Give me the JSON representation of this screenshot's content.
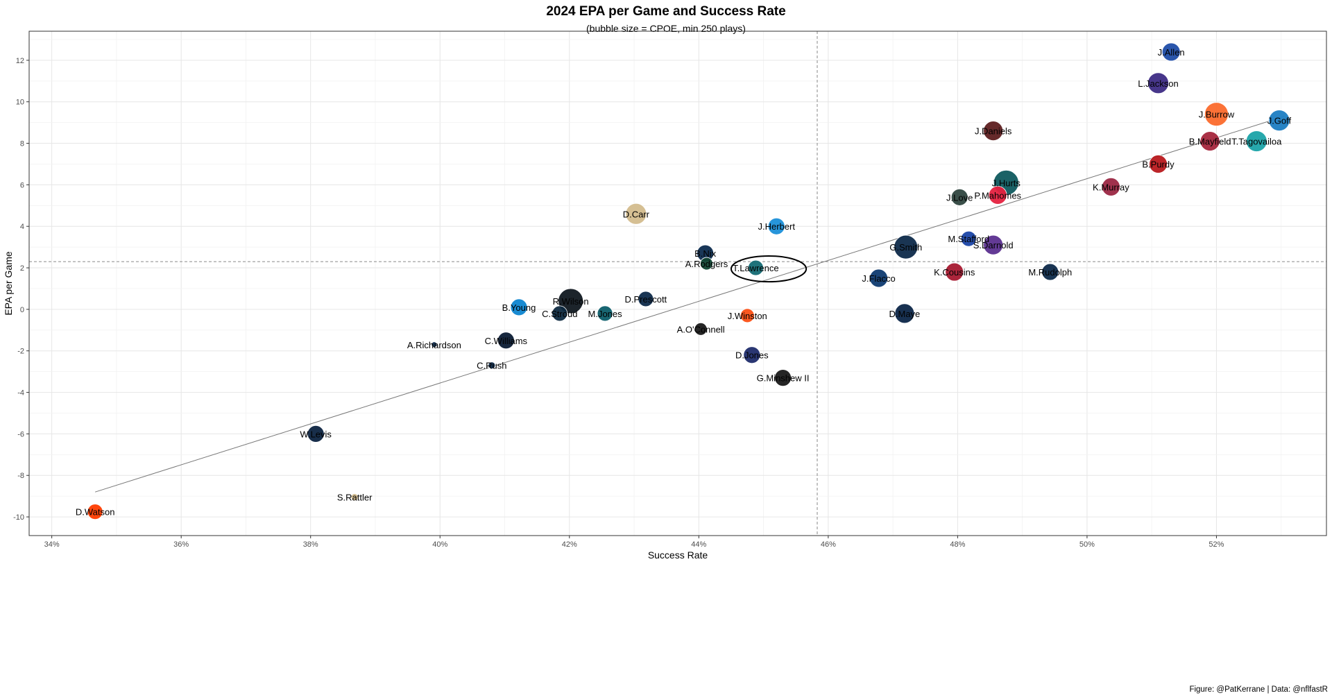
{
  "chart_data": {
    "type": "scatter",
    "title": "2024 EPA per Game and Success Rate",
    "subtitle": "(bubble size = CPOE, min 250 plays)",
    "xlabel": "Success Rate",
    "ylabel": "EPA per Game",
    "caption": "Figure: @PatKerrane | Data: @nflfastR",
    "xlim": [
      0.3365,
      0.537
    ],
    "ylim": [
      -10.9,
      13.4
    ],
    "x_ticks": [
      0.34,
      0.36,
      0.38,
      0.4,
      0.42,
      0.44,
      0.46,
      0.48,
      0.5,
      0.52
    ],
    "x_tick_labels": [
      "34%",
      "36%",
      "38%",
      "40%",
      "42%",
      "44%",
      "46%",
      "48%",
      "50%",
      "52%"
    ],
    "y_ticks": [
      -10,
      -8,
      -6,
      -4,
      -2,
      0,
      2,
      4,
      6,
      8,
      10,
      12
    ],
    "y_tick_labels": [
      "-10",
      "-8",
      "-6",
      "-4",
      "-2",
      "0",
      "2",
      "4",
      "6",
      "8",
      "10",
      "12"
    ],
    "mean_x": 0.4583,
    "mean_y": 2.3,
    "trend_line": {
      "x": [
        0.3467,
        0.5305
      ],
      "y": [
        -8.8,
        9.3
      ]
    },
    "highlight_ellipse": {
      "cx": 0.4508,
      "cy": 1.95,
      "rx": 0.0058,
      "ry": 0.62
    },
    "grid": true,
    "points": [
      {
        "name": "J.Allen",
        "x": 0.513,
        "y": 12.4,
        "size": 13,
        "color": "#1F4DA8"
      },
      {
        "name": "L.Jackson",
        "x": 0.511,
        "y": 10.9,
        "size": 15,
        "color": "#3D2B84"
      },
      {
        "name": "J.Burrow",
        "x": 0.52,
        "y": 9.4,
        "size": 17,
        "color": "#FB6A2C"
      },
      {
        "name": "J.Goff",
        "x": 0.5297,
        "y": 9.1,
        "size": 15,
        "color": "#1C7DC2"
      },
      {
        "name": "J.Daniels",
        "x": 0.4855,
        "y": 8.6,
        "size": 14,
        "color": "#5E1F20"
      },
      {
        "name": "B.Mayfield",
        "x": 0.519,
        "y": 8.1,
        "size": 14,
        "color": "#A5263C"
      },
      {
        "name": "T.Tagovailoa",
        "x": 0.5262,
        "y": 8.1,
        "size": 15,
        "color": "#1BA3A8"
      },
      {
        "name": "B.Purdy",
        "x": 0.511,
        "y": 7.0,
        "size": 13,
        "color": "#B8191E"
      },
      {
        "name": "J.Hurts",
        "x": 0.4875,
        "y": 6.1,
        "size": 18,
        "color": "#0F5A5E"
      },
      {
        "name": "K.Murray",
        "x": 0.5037,
        "y": 5.9,
        "size": 13,
        "color": "#9B2743"
      },
      {
        "name": "P.Mahomes",
        "x": 0.4862,
        "y": 5.5,
        "size": 13,
        "color": "#E5213F"
      },
      {
        "name": "J.Love",
        "x": 0.4803,
        "y": 5.4,
        "size": 12,
        "color": "#2F463F"
      },
      {
        "name": "D.Carr",
        "x": 0.4303,
        "y": 4.6,
        "size": 15,
        "color": "#D3BC8D"
      },
      {
        "name": "J.Herbert",
        "x": 0.452,
        "y": 4.0,
        "size": 12,
        "color": "#1B8FD8"
      },
      {
        "name": "M.Stafford",
        "x": 0.4817,
        "y": 3.4,
        "size": 11,
        "color": "#1A44A6"
      },
      {
        "name": "S.Darnold",
        "x": 0.4855,
        "y": 3.1,
        "size": 14,
        "color": "#5B2F8F"
      },
      {
        "name": "G.Smith",
        "x": 0.472,
        "y": 3.0,
        "size": 17,
        "color": "#0E2A4A"
      },
      {
        "name": "B.Nix",
        "x": 0.441,
        "y": 2.7,
        "size": 12,
        "color": "#0D2C4F"
      },
      {
        "name": "A.Rodgers",
        "x": 0.4412,
        "y": 2.2,
        "size": 9,
        "color": "#124433"
      },
      {
        "name": "T.Lawrence",
        "x": 0.4488,
        "y": 2.0,
        "size": 11,
        "color": "#136A73"
      },
      {
        "name": "K.Cousins",
        "x": 0.4795,
        "y": 1.8,
        "size": 13,
        "color": "#A71930"
      },
      {
        "name": "M.Rudolph",
        "x": 0.4943,
        "y": 1.8,
        "size": 12,
        "color": "#0E2A4A"
      },
      {
        "name": "J.Flacco",
        "x": 0.4678,
        "y": 1.5,
        "size": 13,
        "color": "#0E3A70"
      },
      {
        "name": "D.Prescott",
        "x": 0.4318,
        "y": 0.5,
        "size": 11,
        "color": "#0E2A4A"
      },
      {
        "name": "R.Wilson",
        "x": 0.4202,
        "y": 0.4,
        "size": 18,
        "color": "#101820"
      },
      {
        "name": "B.Young",
        "x": 0.4122,
        "y": 0.1,
        "size": 12,
        "color": "#0D85D0"
      },
      {
        "name": "C.Stroud",
        "x": 0.4185,
        "y": -0.2,
        "size": 11,
        "color": "#0E2A40"
      },
      {
        "name": "M.Jones",
        "x": 0.4255,
        "y": -0.2,
        "size": 11,
        "color": "#0C5E6A"
      },
      {
        "name": "D.Maye",
        "x": 0.4718,
        "y": -0.2,
        "size": 14,
        "color": "#0C2648"
      },
      {
        "name": "J.Winston",
        "x": 0.4475,
        "y": -0.3,
        "size": 10,
        "color": "#FB4F14"
      },
      {
        "name": "A.O'Connell",
        "x": 0.4403,
        "y": -0.95,
        "size": 9,
        "color": "#1A1A1A"
      },
      {
        "name": "C.Williams",
        "x": 0.4102,
        "y": -1.5,
        "size": 12,
        "color": "#0B1B34"
      },
      {
        "name": "A.Richardson",
        "x": 0.3991,
        "y": -1.7,
        "size": 4,
        "color": "#0E2A4A"
      },
      {
        "name": "D.Jones",
        "x": 0.4482,
        "y": -2.2,
        "size": 12,
        "color": "#1F2C6B"
      },
      {
        "name": "C.Rush",
        "x": 0.408,
        "y": -2.7,
        "size": 5,
        "color": "#0E2A4A"
      },
      {
        "name": "G.Minshew II",
        "x": 0.453,
        "y": -3.3,
        "size": 12,
        "color": "#1A1A1A"
      },
      {
        "name": "W.Levis",
        "x": 0.3808,
        "y": -6.0,
        "size": 12,
        "color": "#0C2340"
      },
      {
        "name": "S.Rattler",
        "x": 0.3868,
        "y": -9.05,
        "size": 5,
        "color": "#D3BC8D"
      },
      {
        "name": "D.Watson",
        "x": 0.3467,
        "y": -9.75,
        "size": 11,
        "color": "#FF3C00"
      }
    ]
  }
}
